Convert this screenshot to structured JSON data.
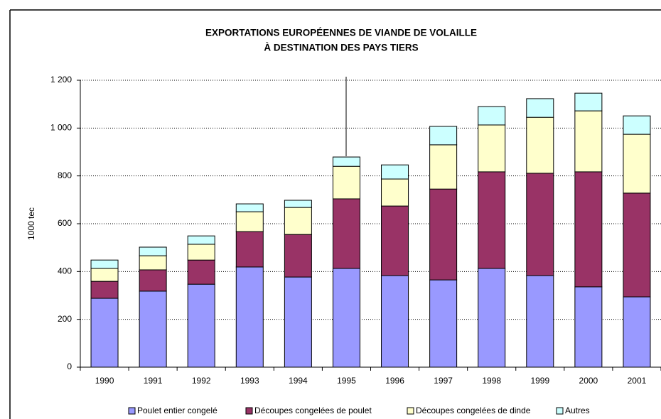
{
  "chart_data": {
    "type": "stacked_bar",
    "title": [
      "EXPORTATIONS EUROPÉENNES DE VIANDE DE VOLAILLE",
      "À DESTINATION DES PAYS TIERS"
    ],
    "y_label": "1000 tec",
    "categories": [
      "1990",
      "1991",
      "1992",
      "1993",
      "1994",
      "1995",
      "1996",
      "1997",
      "1998",
      "1999",
      "2000",
      "2001"
    ],
    "series": [
      {
        "name": "Poulet entier congelé",
        "color": "#9999ff",
        "values": [
          288,
          318,
          347,
          419,
          377,
          413,
          383,
          365,
          413,
          383,
          336,
          294
        ]
      },
      {
        "name": "Découpes congelées de poulet",
        "color": "#993366",
        "values": [
          71,
          89,
          101,
          148,
          178,
          291,
          291,
          380,
          404,
          428,
          481,
          434
        ]
      },
      {
        "name": "Découpes congelées de dinde",
        "color": "#ffffcc",
        "values": [
          54,
          59,
          66,
          83,
          113,
          136,
          113,
          185,
          196,
          234,
          255,
          246
        ]
      },
      {
        "name": "Autres",
        "color": "#ccffff",
        "values": [
          35,
          36,
          35,
          33,
          30,
          39,
          59,
          77,
          77,
          78,
          74,
          77
        ]
      }
    ],
    "ylim": [
      0,
      1200
    ],
    "yticks": [
      0,
      200,
      400,
      600,
      800,
      {
        "value": 1000,
        "label": "1 000"
      },
      {
        "value": 1200,
        "label": "1 200"
      }
    ],
    "grid": true,
    "legend": "bottom"
  }
}
